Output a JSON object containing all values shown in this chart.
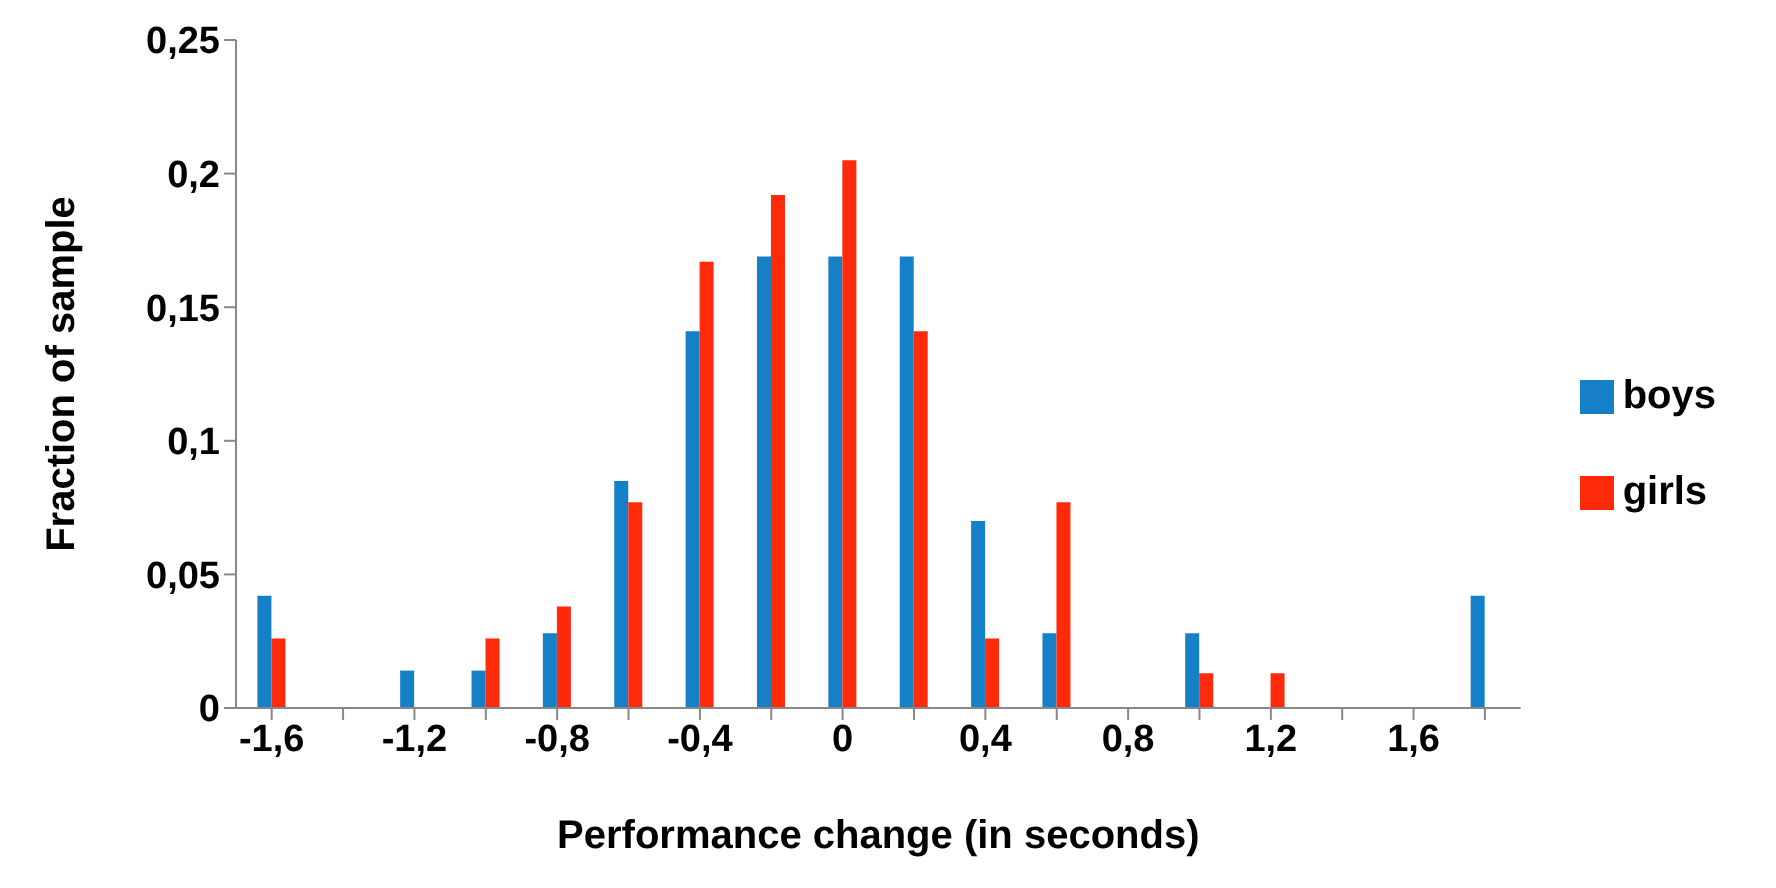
{
  "chart_data": {
    "type": "bar",
    "xlabel": "Performance change (in seconds)",
    "ylabel": "Fraction of sample",
    "categories": [
      "-1,6",
      null,
      "-1,2",
      null,
      "-0,8",
      null,
      "-0,4",
      null,
      "0",
      null,
      "0,4",
      null,
      "0,8",
      null,
      "1,2",
      null,
      "1,6",
      null
    ],
    "series": [
      {
        "name": "boys",
        "color": "#1580c8",
        "values": [
          0.042,
          0,
          0.014,
          0.014,
          0.028,
          0.085,
          0.141,
          0.169,
          0.169,
          0.169,
          0.07,
          0.028,
          0,
          0.028,
          0,
          0,
          0,
          0.042
        ]
      },
      {
        "name": "girls",
        "color": "#ff2a0a",
        "values": [
          0.026,
          0,
          0,
          0.026,
          0.038,
          0.077,
          0.167,
          0.192,
          0.205,
          0.141,
          0.026,
          0.077,
          0,
          0.013,
          0.013,
          0,
          0,
          0
        ]
      }
    ],
    "ylim": [
      0,
      0.25
    ],
    "yticks": [
      {
        "value": 0,
        "label": "0"
      },
      {
        "value": 0.05,
        "label": "0,05"
      },
      {
        "value": 0.1,
        "label": "0,1"
      },
      {
        "value": 0.15,
        "label": "0,15"
      },
      {
        "value": 0.2,
        "label": "0,2"
      },
      {
        "value": 0.25,
        "label": "0,25"
      }
    ],
    "grid": false,
    "legend": "right"
  }
}
